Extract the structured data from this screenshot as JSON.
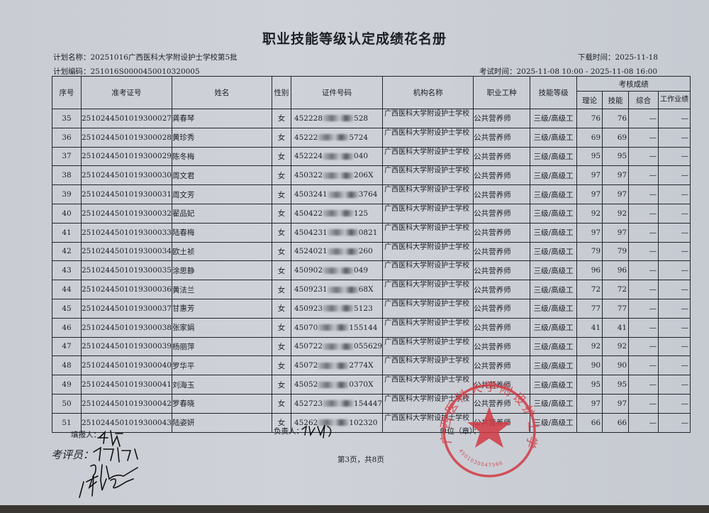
{
  "title": "职业技能等级认定成绩花名册",
  "plan_name": "计划名称：20251016广西医科大学附设护士学校第5批",
  "download_time": "下载时间：2025-11-18",
  "plan_code": "计划编码：251016S0000450010320005",
  "exam_time": "考试时间：2025-11-08 10:00 - 2025-11-08 16:00",
  "headers": {
    "seq": "序号",
    "ticket": "准考证号",
    "name": "姓名",
    "gender": "性别",
    "id": "证件号码",
    "org": "机构名称",
    "job": "职业工种",
    "level": "技能等级",
    "scores": "考核成绩",
    "theory": "理论",
    "skill": "技能",
    "overall": "综合",
    "work": "工作业绩"
  },
  "rows": [
    {
      "seq": "35",
      "ticket": "2510244501019300027",
      "name": "龚春琴",
      "gender": "女",
      "id_pre": "452228",
      "id_suf": "528",
      "org": "广西医科大学附设护士学校",
      "job": "公共营养师",
      "level": "三级/高级工",
      "theory": "76",
      "skill": "76",
      "overall": "—",
      "work": "—"
    },
    {
      "seq": "36",
      "ticket": "2510244501019300028",
      "name": "黄珍秀",
      "gender": "女",
      "id_pre": "45222",
      "id_suf": "5724",
      "org": "广西医科大学附设护士学校",
      "job": "公共营养师",
      "level": "三级/高级工",
      "theory": "69",
      "skill": "69",
      "overall": "—",
      "work": "—"
    },
    {
      "seq": "37",
      "ticket": "2510244501019300029",
      "name": "陈冬梅",
      "gender": "女",
      "id_pre": "452224",
      "id_suf": "040",
      "org": "广西医科大学附设护士学校",
      "job": "公共营养师",
      "level": "三级/高级工",
      "theory": "95",
      "skill": "95",
      "overall": "—",
      "work": "—"
    },
    {
      "seq": "38",
      "ticket": "2510244501019300030",
      "name": "周文君",
      "gender": "女",
      "id_pre": "450322",
      "id_suf": "206X",
      "org": "广西医科大学附设护士学校",
      "job": "公共营养师",
      "level": "三级/高级工",
      "theory": "97",
      "skill": "97",
      "overall": "—",
      "work": "—"
    },
    {
      "seq": "39",
      "ticket": "2510244501019300031",
      "name": "周文芳",
      "gender": "女",
      "id_pre": "4503241",
      "id_suf": "3764",
      "org": "广西医科大学附设护士学校",
      "job": "公共营养师",
      "level": "三级/高级工",
      "theory": "97",
      "skill": "97",
      "overall": "—",
      "work": "—"
    },
    {
      "seq": "40",
      "ticket": "2510244501019300032",
      "name": "翟品妃",
      "gender": "女",
      "id_pre": "450422",
      "id_suf": "125",
      "org": "广西医科大学附设护士学校",
      "job": "公共营养师",
      "level": "三级/高级工",
      "theory": "92",
      "skill": "92",
      "overall": "—",
      "work": "—"
    },
    {
      "seq": "41",
      "ticket": "2510244501019300033",
      "name": "陆春梅",
      "gender": "女",
      "id_pre": "4504231",
      "id_suf": "0821",
      "org": "广西医科大学附设护士学校",
      "job": "公共营养师",
      "level": "三级/高级工",
      "theory": "97",
      "skill": "97",
      "overall": "—",
      "work": "—"
    },
    {
      "seq": "42",
      "ticket": "2510244501019300034",
      "name": "欧土祯",
      "gender": "女",
      "id_pre": "4524021",
      "id_suf": "260",
      "org": "广西医科大学附设护士学校",
      "job": "公共营养师",
      "level": "三级/高级工",
      "theory": "79",
      "skill": "79",
      "overall": "—",
      "work": "—"
    },
    {
      "seq": "43",
      "ticket": "2510244501019300035",
      "name": "涂思静",
      "gender": "女",
      "id_pre": "450902",
      "id_suf": "049",
      "org": "广西医科大学附设护士学校",
      "job": "公共营养师",
      "level": "三级/高级工",
      "theory": "96",
      "skill": "96",
      "overall": "—",
      "work": "—"
    },
    {
      "seq": "44",
      "ticket": "2510244501019300036",
      "name": "黄法兰",
      "gender": "女",
      "id_pre": "4509231",
      "id_suf": "68X",
      "org": "广西医科大学附设护士学校",
      "job": "公共营养师",
      "level": "三级/高级工",
      "theory": "72",
      "skill": "72",
      "overall": "—",
      "work": "—"
    },
    {
      "seq": "45",
      "ticket": "2510244501019300037",
      "name": "甘惠芳",
      "gender": "女",
      "id_pre": "450923",
      "id_suf": "5123",
      "org": "广西医科大学附设护士学校",
      "job": "公共营养师",
      "level": "三级/高级工",
      "theory": "77",
      "skill": "77",
      "overall": "—",
      "work": "—"
    },
    {
      "seq": "46",
      "ticket": "2510244501019300038",
      "name": "张家娟",
      "gender": "女",
      "id_pre": "45070",
      "id_suf": "155144",
      "org": "广西医科大学附设护士学校",
      "job": "公共营养师",
      "level": "三级/高级工",
      "theory": "41",
      "skill": "41",
      "overall": "—",
      "work": "—"
    },
    {
      "seq": "47",
      "ticket": "2510244501019300039",
      "name": "杨丽萍",
      "gender": "女",
      "id_pre": "450722",
      "id_suf": "055629",
      "org": "广西医科大学附设护士学校",
      "job": "公共营养师",
      "level": "三级/高级工",
      "theory": "92",
      "skill": "92",
      "overall": "—",
      "work": "—"
    },
    {
      "seq": "48",
      "ticket": "2510244501019300040",
      "name": "罗华平",
      "gender": "女",
      "id_pre": "45072",
      "id_suf": "2774X",
      "org": "广西医科大学附设护士学校",
      "job": "公共营养师",
      "level": "三级/高级工",
      "theory": "90",
      "skill": "90",
      "overall": "—",
      "work": "—"
    },
    {
      "seq": "49",
      "ticket": "2510244501019300041",
      "name": "刘海玉",
      "gender": "女",
      "id_pre": "45052",
      "id_suf": "0370X",
      "org": "广西医科大学附设护士学校",
      "job": "公共营养师",
      "level": "三级/高级工",
      "theory": "95",
      "skill": "95",
      "overall": "—",
      "work": "—"
    },
    {
      "seq": "50",
      "ticket": "2510244501019300042",
      "name": "罗春晓",
      "gender": "女",
      "id_pre": "452723",
      "id_suf": "154447",
      "org": "广西医科大学附设护士学校",
      "job": "公共营养师",
      "level": "三级/高级工",
      "theory": "97",
      "skill": "97",
      "overall": "—",
      "work": "—"
    },
    {
      "seq": "51",
      "ticket": "2510244501019300043",
      "name": "陆姿妍",
      "gender": "女",
      "id_pre": "45262",
      "id_suf": "102320",
      "org": "广西医科大学附设护士学校",
      "job": "公共营养师",
      "level": "三级/高级工",
      "theory": "66",
      "skill": "66",
      "overall": "—",
      "work": "—"
    }
  ],
  "footer": {
    "filler": "填报人：",
    "responsible": "负责人：",
    "unit": "单位（章）：",
    "evaluator": "考评员：",
    "page": "第3页，共8页"
  },
  "stamp": {
    "text": "广西医科大学附设护士学校",
    "number": "4501030047566",
    "color": "#d23a44"
  }
}
